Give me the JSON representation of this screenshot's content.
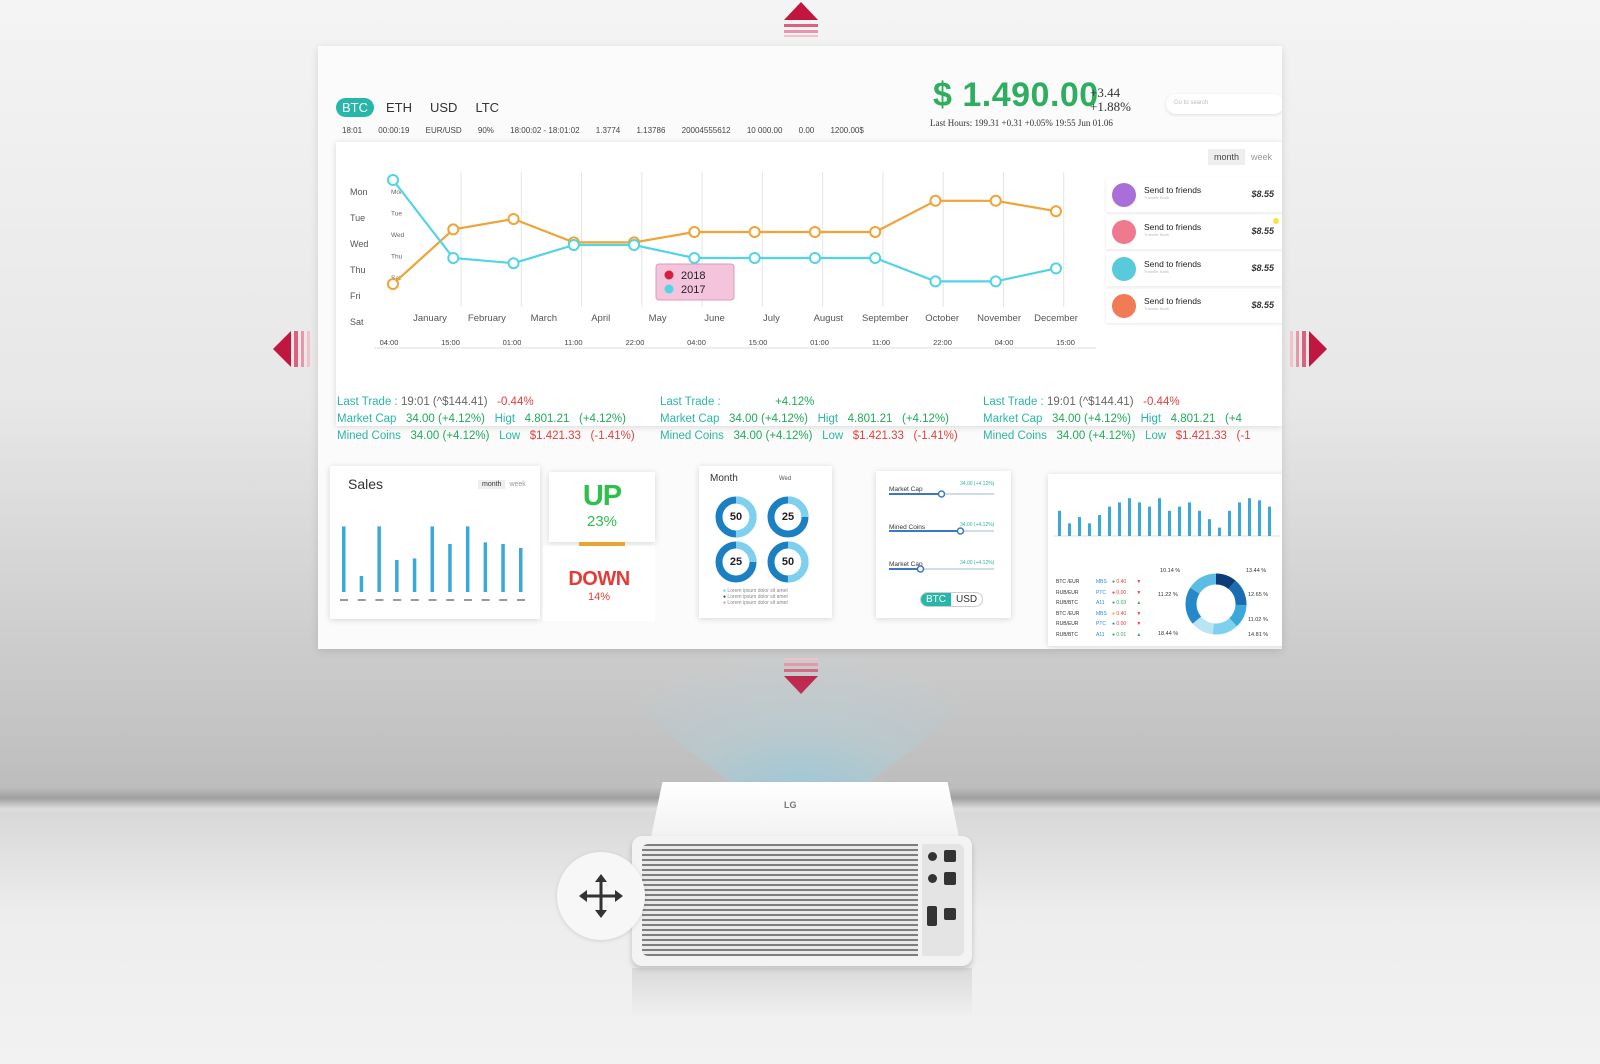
{
  "dashboard": {
    "currency_tabs": [
      "BTC",
      "ETH",
      "USD",
      "LTC"
    ],
    "active_tab": "BTC",
    "ticker": [
      "18:01",
      "00:00:19",
      "EUR/USD",
      "90%",
      "18:00:02 - 18:01:02",
      "1.3774",
      "1.13786",
      "20004555612",
      "10 000.00",
      "0.00",
      "1200.00$"
    ],
    "price": "$ 1.490.00",
    "delta_abs": "+3.44",
    "delta_pct": "+1.88%",
    "last_hours": "Last Hours: 199.31 +0.31  +0.05%  19:55 Jun 01.06",
    "search_placeholder": "Go to search",
    "toggle": {
      "month": "month",
      "week": "week"
    }
  },
  "chart_data": {
    "type": "line",
    "categories": [
      "January",
      "February",
      "March",
      "April",
      "May",
      "June",
      "July",
      "August",
      "September",
      "October",
      "November",
      "December"
    ],
    "y_categories": [
      "Mon",
      "Tue",
      "Wed",
      "Thu",
      "Fri",
      "Sat"
    ],
    "inner_y_labels": [
      "Mon",
      "Tue",
      "Wed",
      "Thu",
      "Sat"
    ],
    "time_ticks": [
      "04:00",
      "15:00",
      "01:00",
      "11:00",
      "22:00",
      "04:00",
      "15:00",
      "01:00",
      "11:00",
      "22:00",
      "04:00",
      "15:00",
      "01:00",
      "11:00",
      "22:00"
    ],
    "series": [
      {
        "name": "2018",
        "color": "#f0a336",
        "values": [
          4.0,
          1.9,
          1.5,
          2.4,
          2.4,
          2.0,
          2.0,
          2.0,
          2.0,
          0.8,
          0.8,
          1.2
        ]
      },
      {
        "name": "2017",
        "color": "#52d3e6",
        "values": [
          0.0,
          3.0,
          3.2,
          2.5,
          2.5,
          3.0,
          3.0,
          3.0,
          3.0,
          3.9,
          3.9,
          3.4
        ]
      }
    ],
    "x_points": [
      0,
      1,
      2,
      3,
      4,
      5,
      6,
      7,
      8,
      9,
      10,
      11
    ],
    "ylim": [
      0,
      5
    ],
    "legend_position": "center"
  },
  "send_list": [
    {
      "label": "Send to friends",
      "sub": "Transfer Bank",
      "amount": "$8.55",
      "color": "#a86fd8"
    },
    {
      "label": "Send to friends",
      "sub": "Transfer Bank",
      "amount": "$8.55",
      "color": "#ef7a90"
    },
    {
      "label": "Send to friends",
      "sub": "Transfer Bank",
      "amount": "$8.55",
      "color": "#59c9dc"
    },
    {
      "label": "Send to friends",
      "sub": "Transfer Bank",
      "amount": "$8.55",
      "color": "#f07b54"
    }
  ],
  "stats": [
    {
      "last_trade_label": "Last Trade :",
      "last_trade_value": "19:01 (^$144.41)",
      "last_trade_pct": "-0.44%",
      "market_cap_label": "Market Cap",
      "market_cap_value": "34.00 (+4.12%)",
      "high_label": "Higt",
      "high_value": "4.801.21",
      "high_pct": "(+4.12%)",
      "mined_label": "Mined Coins",
      "mined_value": "34.00 (+4.12%)",
      "low_label": "Low",
      "low_value": "$1.421.33",
      "low_pct": "(-1.41%)"
    },
    {
      "last_trade_label": "Last Trade :",
      "last_trade_value": "",
      "last_trade_pct": "+4.12%",
      "market_cap_label": "Market Cap",
      "market_cap_value": "34.00 (+4.12%)",
      "high_label": "Higt",
      "high_value": "4.801.21",
      "high_pct": "(+4.12%)",
      "mined_label": "Mined Coins",
      "mined_value": "34.00 (+4.12%)",
      "low_label": "Low",
      "low_value": "$1.421.33",
      "low_pct": "(-1.41%)"
    },
    {
      "last_trade_label": "Last Trade :",
      "last_trade_value": "19:01 (^$144.41)",
      "last_trade_pct": "-0.44%",
      "market_cap_label": "Market Cap",
      "market_cap_value": "34.00 (+4.12%)",
      "high_label": "Higt",
      "high_value": "4.801.21",
      "high_pct": "(+4",
      "mined_label": "Mined Coins",
      "mined_value": "34.00 (+4.12%)",
      "low_label": "Low",
      "low_value": "$1.421.33",
      "low_pct": "(-1"
    }
  ],
  "sales_card": {
    "title": "Sales",
    "toggle_month": "month",
    "toggle_week": "week",
    "bar_values": [
      0.82,
      0.2,
      0.82,
      0.4,
      0.42,
      0.82,
      0.6,
      0.82,
      0.62,
      0.6,
      0.55
    ]
  },
  "updown": {
    "up_word": "UP",
    "up_pct": "23%",
    "down_word": "DOWN",
    "down_pct": "14%"
  },
  "month_card": {
    "title": "Month",
    "sub": "Wed",
    "rings": [
      {
        "label": "50",
        "fill": 0.5
      },
      {
        "label": "25",
        "fill": 0.25
      },
      {
        "label": "25",
        "fill": 0.25
      },
      {
        "label": "50",
        "fill": 0.5
      }
    ],
    "legend": [
      "Lorem ipsum dolor sit amet",
      "Lorem ipsum dolor sit amet",
      "Lorem ipsum dolor sit amet"
    ]
  },
  "sliders_card": {
    "items": [
      {
        "label": "Market Cap",
        "value": "34.00 (+4.12%)",
        "level": 0.5
      },
      {
        "label": "Mined Coins",
        "value": "34.00 (+4.12%)",
        "level": 0.68
      },
      {
        "label": "Market Cap",
        "value": "34.00 (+4.12%)",
        "level": 0.3
      }
    ],
    "pill_on": "BTC",
    "pill_off": "USD"
  },
  "bars_card": {
    "bar_values": [
      0.6,
      0.3,
      0.45,
      0.3,
      0.5,
      0.7,
      0.8,
      0.9,
      0.8,
      0.7,
      0.9,
      0.6,
      0.7,
      0.8,
      0.6,
      0.4,
      0.2,
      0.6,
      0.8,
      0.9,
      0.85,
      0.7
    ],
    "rows": [
      {
        "pair": "BTC /EUR",
        "code": "MBS",
        "dot": "#2fae5f",
        "val": "0.40",
        "dir": "down"
      },
      {
        "pair": "RUB/EUR",
        "code": "PTC",
        "dot": "#e0403d",
        "val": "0.00",
        "dir": "down"
      },
      {
        "pair": "RUB/BTC",
        "code": "A11",
        "dot": "#2fae5f",
        "val": "0.03",
        "dir": "up"
      },
      {
        "pair": "BTC /EUR",
        "code": "MBS",
        "dot": "#f0a336",
        "val": "0.40",
        "dir": "down"
      },
      {
        "pair": "RUB/EUR",
        "code": "PTC",
        "dot": "#2b8ed6",
        "val": "0.00",
        "dir": "down"
      },
      {
        "pair": "RUB/BTC",
        "code": "A11",
        "dot": "#2fae5f",
        "val": "0.01",
        "dir": "up"
      }
    ],
    "donut_labels": [
      "10.14 %",
      "13.44 %",
      "11.22 %",
      "12.65 %",
      "11.02 %",
      "18.44 %",
      "14.81 %"
    ]
  },
  "projector": {
    "logo": "LG"
  }
}
